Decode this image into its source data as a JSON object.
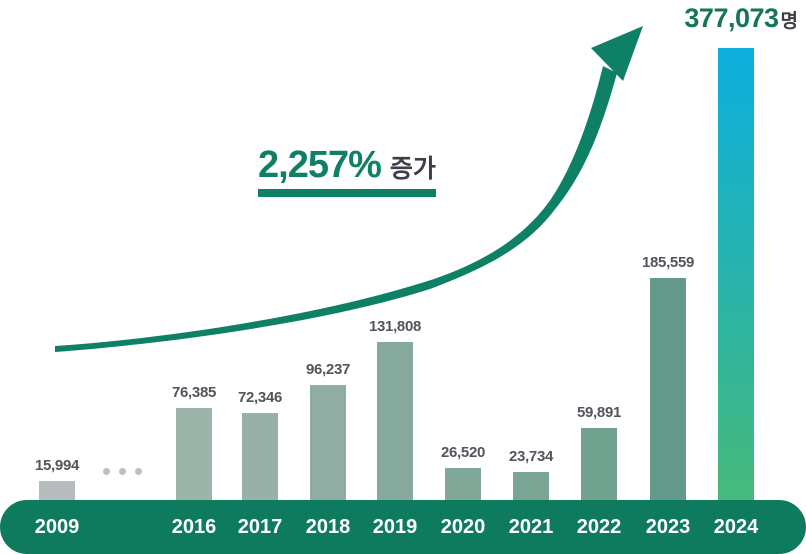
{
  "chart_data": {
    "type": "bar",
    "title": "",
    "categories": [
      "2009",
      "2016",
      "2017",
      "2018",
      "2019",
      "2020",
      "2021",
      "2022",
      "2023",
      "2024"
    ],
    "values": [
      15994,
      76385,
      72346,
      96237,
      131808,
      26520,
      23734,
      59891,
      185559,
      377073
    ],
    "value_labels": [
      "15,994",
      "76,385",
      "72,346",
      "96,237",
      "131,808",
      "26,520",
      "23,734",
      "59,891",
      "185,559",
      "377,073"
    ],
    "ylim": [
      0,
      377073
    ],
    "grid": false,
    "legend": false,
    "gap_ellipsis_dots": 3,
    "annotation": {
      "percent": "2,257%",
      "suffix": "증가"
    },
    "highlight": {
      "value": "377,073",
      "suffix": "명"
    },
    "bar_colors": [
      "#b6bcbe",
      "#9db4ab",
      "#98b1a8",
      "#90ada3",
      "#87aa9e",
      "#80a798",
      "#7aa494",
      "#71a18f",
      "#649a8c",
      null
    ],
    "highlight_gradient": [
      "#0baede",
      "#2bb4a8",
      "#47ba7a"
    ],
    "colors": {
      "arrow": "#0d8066",
      "annotation_accent": "#0f8065",
      "annotation_text": "#3e3e48",
      "value_label": "#54545e",
      "highlight_value": "#15745a",
      "highlight_suffix": "#3d3d47",
      "axis_strip": "#0e7b5f",
      "axis_label": "#ffffff",
      "ellipsis_dot": "#b9c0c2"
    }
  }
}
